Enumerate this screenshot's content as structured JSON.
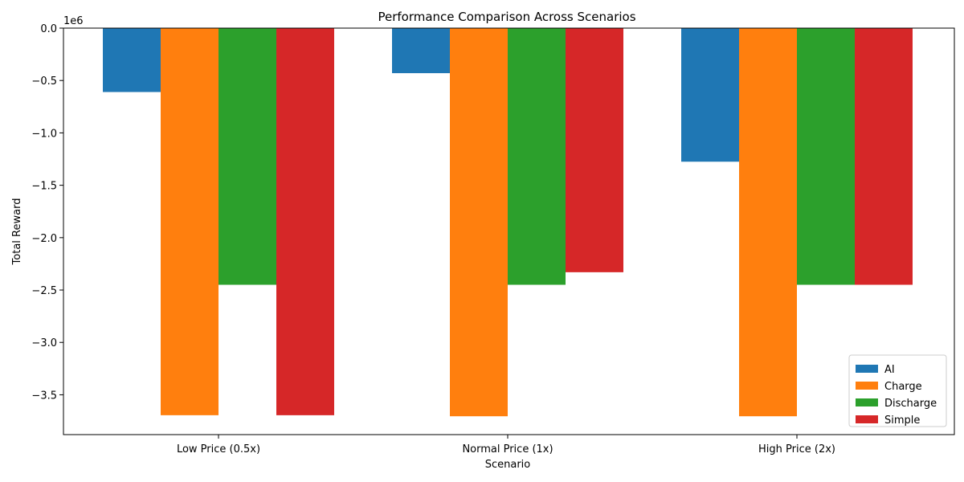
{
  "chart_data": {
    "type": "bar",
    "title": "Performance Comparison Across Scenarios",
    "xlabel": "Scenario",
    "ylabel": "Total Reward",
    "y_offset_label": "1e6",
    "categories": [
      "Low Price (0.5x)",
      "Normal Price (1x)",
      "High Price (2x)"
    ],
    "series": [
      {
        "name": "AI",
        "color": "#1f77b4",
        "values": [
          -610000,
          -430000,
          -1275000
        ]
      },
      {
        "name": "Charge",
        "color": "#ff7f0e",
        "values": [
          -3695000,
          -3705000,
          -3705000
        ]
      },
      {
        "name": "Discharge",
        "color": "#2ca02c",
        "values": [
          -2450000,
          -2450000,
          -2450000
        ]
      },
      {
        "name": "Simple",
        "color": "#d62728",
        "values": [
          -3695000,
          -2330000,
          -2450000
        ]
      }
    ],
    "ylim": [
      -3880000,
      0
    ],
    "yticks": [
      0.0,
      -0.5,
      -1.0,
      -1.5,
      -2.0,
      -2.5,
      -3.0,
      -3.5
    ],
    "ytick_labels": [
      "0.0",
      "−0.5",
      "−1.0",
      "−1.5",
      "−2.0",
      "−2.5",
      "−3.0",
      "−3.5"
    ],
    "ytick_scale": 1000000,
    "legend_position": "lower-right",
    "grid": false
  }
}
